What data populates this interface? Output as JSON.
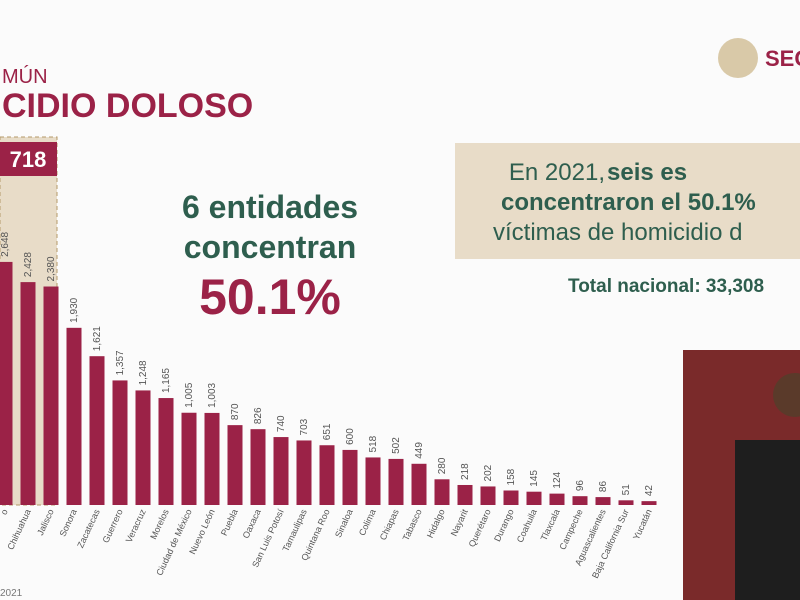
{
  "header": {
    "kicker": "MÚN",
    "title": "CIDIO DOLOSO",
    "logo": "SEC"
  },
  "highlight_total": "718",
  "callout": {
    "line1": "6 entidades",
    "line2": "concentran",
    "value": "50.1%"
  },
  "box": {
    "line1_a": "En 2021, ",
    "line1_b": "seis es",
    "line2": "concentraron el 50.1%",
    "line3": "víctimas de homicidio d"
  },
  "total": "Total nacional: 33,308",
  "footer": "2021",
  "chart_data": {
    "type": "bar",
    "color": "#9b2247",
    "categories": [
      "o",
      "Chihuahua",
      "Jalisco",
      "Sonora",
      "Zacatecas",
      "Guerrero",
      "Veracruz",
      "Morelos",
      "Ciudad de México",
      "Nuevo León",
      "Puebla",
      "Oaxaca",
      "San Luis Potosí",
      "Tamaulipas",
      "Quintana Roo",
      "Sinaloa",
      "Colima",
      "Chiapas",
      "Tabasco",
      "Hidalgo",
      "Nayarit",
      "Querétaro",
      "Durango",
      "Coahuila",
      "Tlaxcala",
      "Campeche",
      "Aguascalientes",
      "Baja California Sur",
      "Yucatán"
    ],
    "values": [
      2648,
      2428,
      2380,
      1930,
      1621,
      1357,
      1248,
      1165,
      1005,
      1003,
      870,
      826,
      740,
      703,
      651,
      600,
      518,
      502,
      449,
      280,
      218,
      202,
      158,
      145,
      124,
      96,
      86,
      51,
      42
    ],
    "value_labels": [
      "2,648",
      "2,428",
      "2,380",
      "1,930",
      "1,621",
      "1,357",
      "1,248",
      "1,165",
      "1,005",
      "1,003",
      "870",
      "826",
      "740",
      "703",
      "651",
      "600",
      "518",
      "502",
      "449",
      "280",
      "218",
      "202",
      "158",
      "145",
      "124",
      "96",
      "86",
      "51",
      "42"
    ]
  }
}
